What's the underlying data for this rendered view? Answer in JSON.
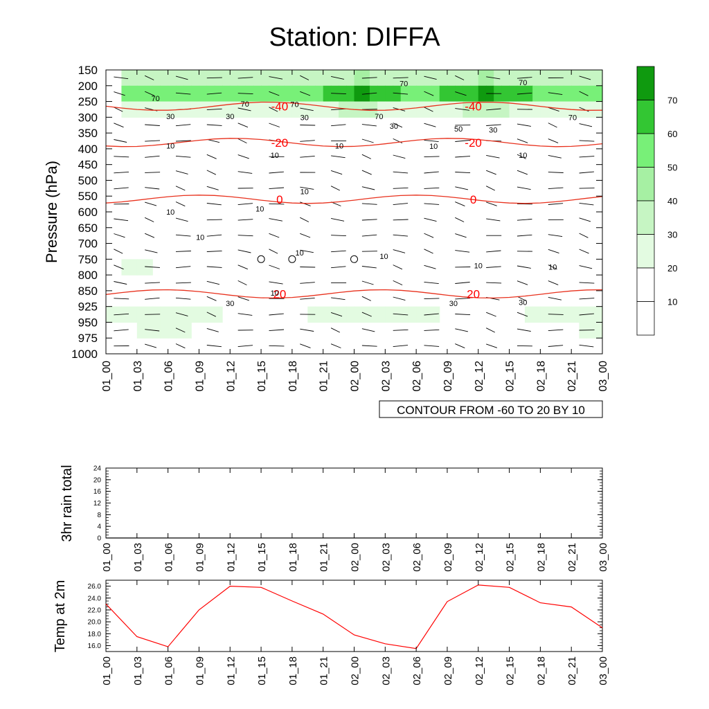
{
  "title": "Station: DIFFA",
  "time_labels": [
    "01_00",
    "01_03",
    "01_06",
    "01_09",
    "01_12",
    "01_15",
    "01_18",
    "01_21",
    "02_00",
    "02_03",
    "02_06",
    "02_09",
    "02_12",
    "02_15",
    "02_18",
    "02_21",
    "03_00"
  ],
  "chart_data": [
    {
      "type": "heatmap",
      "title": "Station: DIFFA",
      "ylabel": "Pressure (hPa)",
      "xlabel": "",
      "y_levels": [
        150,
        200,
        250,
        300,
        350,
        400,
        450,
        500,
        550,
        600,
        650,
        700,
        750,
        800,
        850,
        925,
        950,
        975,
        1000
      ],
      "y_direction": "reversed",
      "fill_variable_levels": [
        10,
        20,
        30,
        40,
        50,
        60,
        70
      ],
      "fill_colors": [
        "#ffffff",
        "#ffffff",
        "#e3fbe1",
        "#c6f5c3",
        "#a6f0a3",
        "#78f078",
        "#33c633",
        "#0f9a0f"
      ],
      "colorbar_labels": [
        "10",
        "20",
        "30",
        "40",
        "50",
        "60",
        "70"
      ],
      "info_label": "CONTOUR FROM -60 TO 20 BY 10",
      "temperature_contours": [
        {
          "value": -40,
          "label": "-40",
          "pressure": 265
        },
        {
          "value": -20,
          "label": "-20",
          "pressure": 380
        },
        {
          "value": 0,
          "label": "0",
          "pressure": 560
        },
        {
          "value": 20,
          "label": "20",
          "pressure": 865
        }
      ],
      "wind_speed_contour_labels": [
        "10",
        "30",
        "50",
        "70"
      ],
      "calm_markers_at": [
        {
          "time": "01_15",
          "pressure": 750
        },
        {
          "time": "01_18",
          "pressure": 750
        },
        {
          "time": "02_00",
          "pressure": 750
        }
      ]
    },
    {
      "type": "line",
      "ylabel": "3hr rain total",
      "ylim": [
        0,
        24
      ],
      "yticks": [
        "0",
        "4",
        "8",
        "12",
        "16",
        "20",
        "24"
      ],
      "x": [
        "01_00",
        "01_03",
        "01_06",
        "01_09",
        "01_12",
        "01_15",
        "01_18",
        "01_21",
        "02_00",
        "02_03",
        "02_06",
        "02_09",
        "02_12",
        "02_15",
        "02_18",
        "02_21",
        "03_00"
      ],
      "series": [
        {
          "values": [
            0,
            0,
            0,
            0,
            0,
            0,
            0,
            0,
            0,
            0,
            0,
            0,
            0,
            0,
            0,
            0,
            0
          ]
        }
      ]
    },
    {
      "type": "line",
      "ylabel": "Temp at 2m",
      "ylim": [
        15,
        27
      ],
      "yticks": [
        "16.0",
        "18.0",
        "20.0",
        "22.0",
        "24.0",
        "26.0"
      ],
      "x": [
        "01_00",
        "01_03",
        "01_06",
        "01_09",
        "01_12",
        "01_15",
        "01_18",
        "01_21",
        "02_00",
        "02_03",
        "02_06",
        "02_09",
        "02_12",
        "02_15",
        "02_18",
        "02_21",
        "03_00"
      ],
      "series": [
        {
          "values": [
            23.0,
            17.5,
            15.8,
            22.0,
            26.0,
            25.8,
            23.5,
            21.3,
            17.8,
            16.3,
            15.5,
            23.4,
            26.2,
            25.8,
            23.2,
            22.5,
            19.0
          ]
        }
      ],
      "line_color": "#ff0000"
    }
  ]
}
